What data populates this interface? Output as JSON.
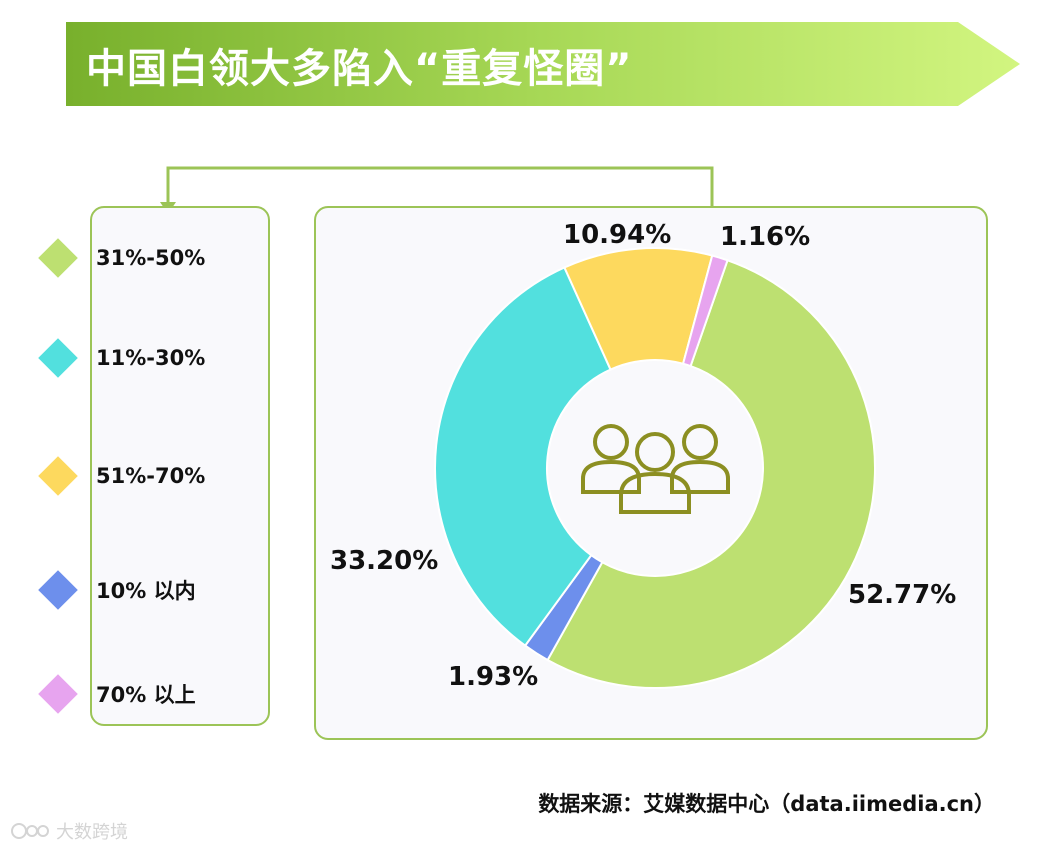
{
  "title": "中国白领大多陷入“重复怪圈”",
  "source": "数据来源：艾媒数据中心（data.iimedia.cn）",
  "watermark": "大数跨境",
  "chart_data": {
    "type": "pie",
    "donut": true,
    "center_icon": "people-group-icon",
    "slices": [
      {
        "label": "31%-50%",
        "value": 52.77,
        "value_label": "52.77%",
        "color": "#bde071"
      },
      {
        "label": "10% 以内",
        "value": 1.93,
        "value_label": "1.93%",
        "color": "#6d8fec"
      },
      {
        "label": "11%-30%",
        "value": 33.2,
        "value_label": "33.20%",
        "color": "#52e0de"
      },
      {
        "label": "51%-70%",
        "value": 10.94,
        "value_label": "10.94%",
        "color": "#fdd95e"
      },
      {
        "label": "70% 以上",
        "value": 1.16,
        "value_label": "1.16%",
        "color": "#e7a4ef"
      }
    ],
    "legend": [
      {
        "label": "31%-50%",
        "color": "#bde071"
      },
      {
        "label": "11%-30%",
        "color": "#52e0de"
      },
      {
        "label": "51%-70%",
        "color": "#fdd95e"
      },
      {
        "label": "10% 以内",
        "color": "#6d8fec"
      },
      {
        "label": "70% 以上",
        "color": "#e7a4ef"
      }
    ],
    "legend_placement": "left"
  }
}
